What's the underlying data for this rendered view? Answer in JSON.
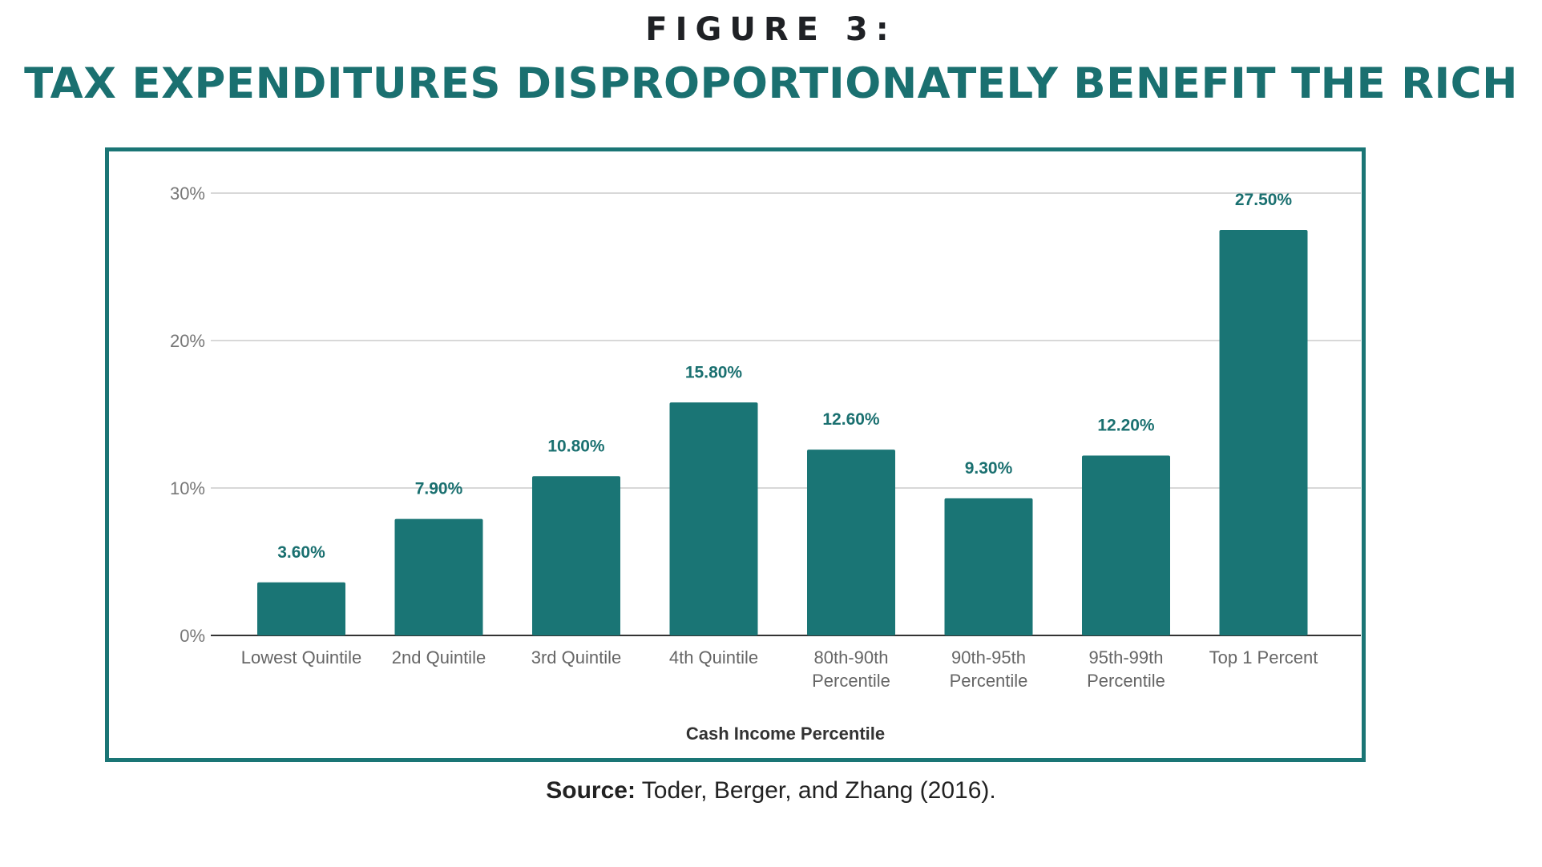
{
  "header": {
    "figure_label": "FIGURE 3:",
    "title": "TAX EXPENDITURES DISPROPORTIONATELY BENEFIT THE RICH"
  },
  "source": {
    "label": "Source:",
    "text": " Toder, Berger, and Zhang (2016)."
  },
  "colors": {
    "bar": "#1a7575",
    "title": "#1a7070",
    "frame": "#1a7575",
    "grid": "#cccccc"
  },
  "chart_data": {
    "type": "bar",
    "categories": [
      [
        "Lowest Quintile"
      ],
      [
        "2nd Quintile"
      ],
      [
        "3rd Quintile"
      ],
      [
        "4th Quintile"
      ],
      [
        "80th-90th",
        "Percentile"
      ],
      [
        "90th-95th",
        "Percentile"
      ],
      [
        "95th-99th",
        "Percentile"
      ],
      [
        "Top 1 Percent"
      ]
    ],
    "values": [
      3.6,
      7.9,
      10.8,
      15.8,
      12.6,
      9.3,
      12.2,
      27.5
    ],
    "data_labels": [
      "3.60%",
      "7.90%",
      "10.80%",
      "15.80%",
      "12.60%",
      "9.30%",
      "12.20%",
      "27.50%"
    ],
    "title": "",
    "xlabel": "Cash Income Percentile",
    "ylabel": "",
    "ylim": [
      0,
      30
    ],
    "yticks": [
      0,
      10,
      20,
      30
    ],
    "ytick_labels": [
      "0%",
      "10%",
      "20%",
      "30%"
    ],
    "grid": true,
    "legend": "none"
  }
}
